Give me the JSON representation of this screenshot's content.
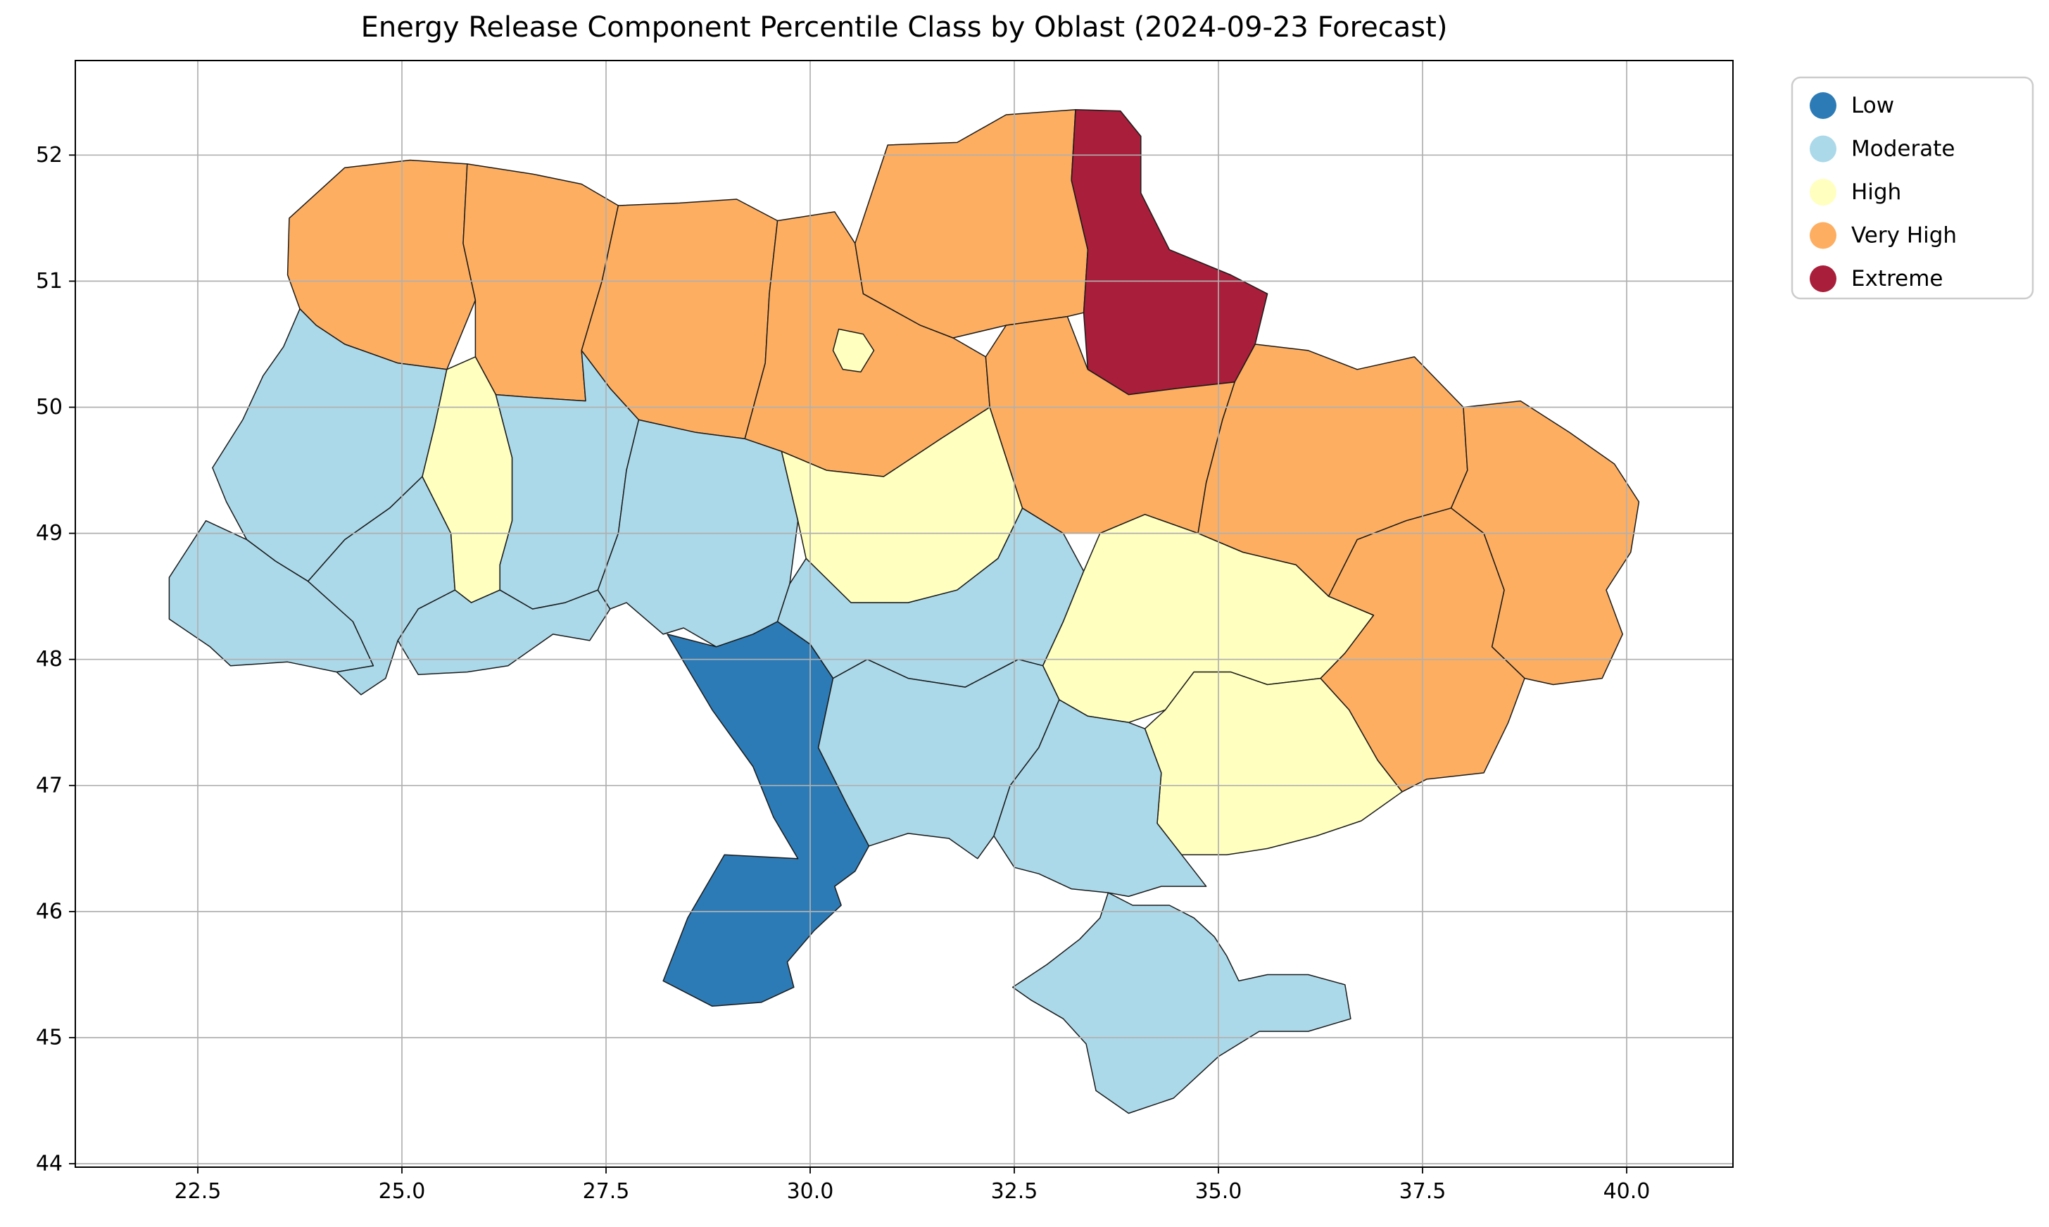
{
  "figure": {
    "title": "Energy Release Component Percentile Class by Oblast (2024-09-23 Forecast)"
  },
  "chart_data": {
    "type": "choropleth",
    "title": "Energy Release Component Percentile Class by Oblast (2024-09-23 Forecast)",
    "geography": "Ukraine oblasts (longitude/latitude degrees)",
    "grid": true,
    "x_axis": {
      "tick_labels": [
        "22.5",
        "25.0",
        "27.5",
        "30.0",
        "32.5",
        "35.0",
        "37.5",
        "40.0"
      ],
      "range": [
        21.0,
        41.3
      ]
    },
    "y_axis": {
      "tick_labels": [
        "44",
        "45",
        "46",
        "47",
        "48",
        "49",
        "50",
        "51",
        "52"
      ],
      "range": [
        43.97,
        52.75
      ]
    },
    "legend": {
      "position": "upper-right-outside",
      "entries": [
        {
          "label": "Low",
          "color": "#2c7bb6"
        },
        {
          "label": "Moderate",
          "color": "#abd9e9"
        },
        {
          "label": "High",
          "color": "#ffffbf"
        },
        {
          "label": "Very High",
          "color": "#fdae61"
        },
        {
          "label": "Extreme",
          "color": "#a91e3a"
        }
      ]
    },
    "class_colors": {
      "Low": "#2c7bb6",
      "Moderate": "#abd9e9",
      "High": "#ffffbf",
      "Very High": "#fdae61",
      "Extreme": "#a91e3a"
    },
    "oblast_classes": [
      {
        "id": "volyn",
        "oblast": "Volyn",
        "class": "Very High"
      },
      {
        "id": "rivne",
        "oblast": "Rivne",
        "class": "Very High"
      },
      {
        "id": "zhytomyr",
        "oblast": "Zhytomyr",
        "class": "Very High"
      },
      {
        "id": "kyiv_oblast",
        "oblast": "Kyiv Oblast",
        "class": "Very High"
      },
      {
        "id": "chernihiv",
        "oblast": "Chernihiv",
        "class": "Very High"
      },
      {
        "id": "sumy",
        "oblast": "Sumy",
        "class": "Extreme"
      },
      {
        "id": "lviv",
        "oblast": "Lviv",
        "class": "Moderate"
      },
      {
        "id": "zakarpattia",
        "oblast": "Zakarpattia",
        "class": "Moderate"
      },
      {
        "id": "ivano_frankivsk",
        "oblast": "Ivano-Frankivsk",
        "class": "Moderate"
      },
      {
        "id": "ternopil",
        "oblast": "Ternopil",
        "class": "High"
      },
      {
        "id": "khmelnytskyi",
        "oblast": "Khmelnytskyi",
        "class": "Moderate"
      },
      {
        "id": "chernivtsi",
        "oblast": "Chernivtsi",
        "class": "Moderate"
      },
      {
        "id": "vinnytsia",
        "oblast": "Vinnytsia",
        "class": "Moderate"
      },
      {
        "id": "cherkasy",
        "oblast": "Cherkasy",
        "class": "High"
      },
      {
        "id": "kirovohrad",
        "oblast": "Kirovohrad",
        "class": "Moderate"
      },
      {
        "id": "poltava",
        "oblast": "Poltava",
        "class": "Very High"
      },
      {
        "id": "kharkiv",
        "oblast": "Kharkiv",
        "class": "Very High"
      },
      {
        "id": "luhansk",
        "oblast": "Luhansk",
        "class": "Very High"
      },
      {
        "id": "donetsk",
        "oblast": "Donetsk",
        "class": "Very High"
      },
      {
        "id": "dnipropetrovsk",
        "oblast": "Dnipropetrovsk",
        "class": "High"
      },
      {
        "id": "zaporizhzhia",
        "oblast": "Zaporizhzhia",
        "class": "High"
      },
      {
        "id": "odesa",
        "oblast": "Odesa",
        "class": "Low"
      },
      {
        "id": "mykolaiv",
        "oblast": "Mykolaiv",
        "class": "Moderate"
      },
      {
        "id": "kherson",
        "oblast": "Kherson",
        "class": "Moderate"
      },
      {
        "id": "crimea",
        "oblast": "Crimea",
        "class": "Moderate"
      },
      {
        "id": "kyiv_city",
        "oblast": "Kyiv City",
        "class": "High"
      }
    ]
  }
}
